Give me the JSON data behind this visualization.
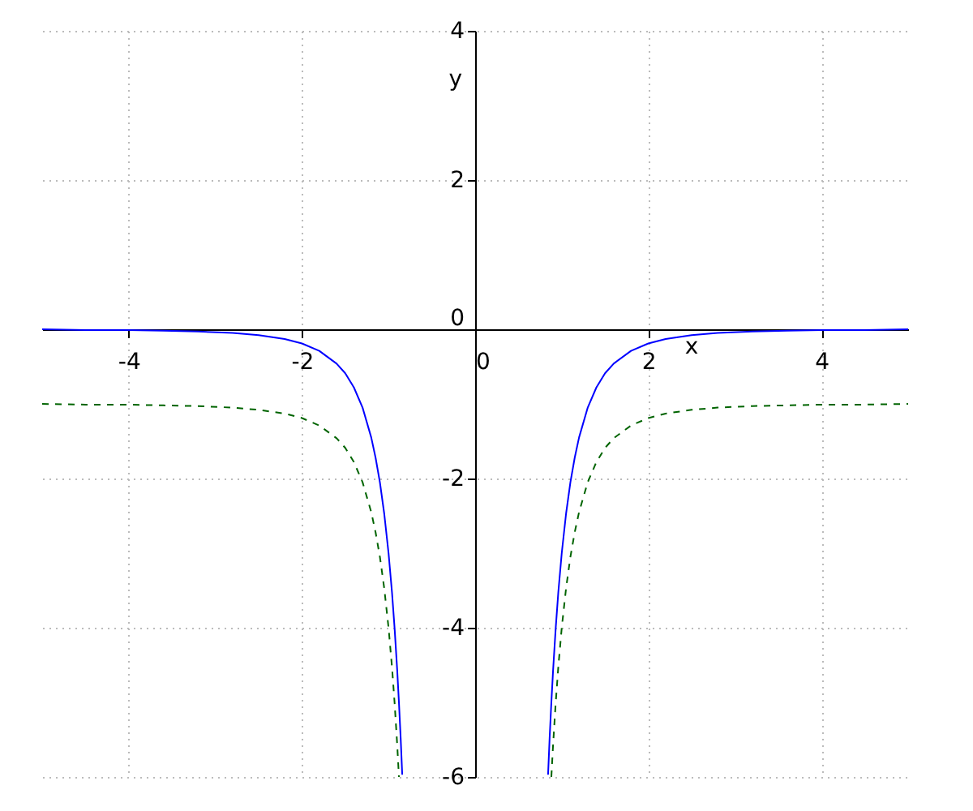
{
  "chart_data": {
    "type": "line",
    "xlabel": "x",
    "ylabel": "y",
    "xlim": [
      -5,
      5
    ],
    "ylim": [
      -6,
      4
    ],
    "xticks": [
      -4,
      -2,
      0,
      2,
      4
    ],
    "yticks": [
      -6,
      -4,
      -2,
      0,
      2,
      4
    ],
    "grid": true,
    "x": [
      -5.0,
      -4.5,
      -4.0,
      -3.6,
      -3.2,
      -2.8,
      -2.5,
      -2.2,
      -2.0,
      -1.8,
      -1.6,
      -1.5,
      -1.4,
      -1.3,
      -1.2,
      -1.15,
      -1.1,
      -1.05,
      -1.0,
      -0.96,
      -0.93,
      -0.9,
      -0.88,
      -0.86,
      -0.842,
      null,
      0.842,
      0.86,
      0.88,
      0.9,
      0.93,
      0.96,
      1.0,
      1.05,
      1.1,
      1.15,
      1.2,
      1.3,
      1.4,
      1.5,
      1.6,
      1.8,
      2.0,
      2.2,
      2.5,
      2.8,
      3.2,
      3.6,
      4.0,
      4.5,
      5.0
    ],
    "series": [
      {
        "color": "#0000ff",
        "line_style": "solid",
        "values": [
          0.0,
          -0.01,
          -0.01,
          -0.02,
          -0.03,
          -0.05,
          -0.08,
          -0.13,
          -0.19,
          -0.29,
          -0.46,
          -0.59,
          -0.78,
          -1.05,
          -1.45,
          -1.72,
          -2.05,
          -2.47,
          -3.0,
          -3.53,
          -4.01,
          -4.57,
          -5.0,
          -5.48,
          -5.97,
          null,
          -5.97,
          -5.48,
          -5.0,
          -4.57,
          -4.01,
          -3.53,
          -3.0,
          -2.47,
          -2.05,
          -1.72,
          -1.45,
          -1.05,
          -0.78,
          -0.59,
          -0.46,
          -0.29,
          -0.19,
          -0.13,
          -0.08,
          -0.05,
          -0.03,
          -0.02,
          -0.01,
          -0.01,
          0.0
        ]
      },
      {
        "color": "#006400",
        "line_style": "dashed",
        "values": [
          -1.0,
          -1.01,
          -1.01,
          -1.02,
          -1.03,
          -1.05,
          -1.08,
          -1.13,
          -1.19,
          -1.29,
          -1.46,
          -1.59,
          -1.78,
          -2.05,
          -2.45,
          -2.72,
          -3.05,
          -3.47,
          -4.0,
          -4.53,
          -5.01,
          -5.57,
          -6.0,
          null,
          null,
          null,
          null,
          null,
          -6.0,
          -5.57,
          -5.01,
          -4.53,
          -4.0,
          -3.47,
          -3.05,
          -2.72,
          -2.45,
          -2.05,
          -1.78,
          -1.59,
          -1.46,
          -1.29,
          -1.19,
          -1.13,
          -1.08,
          -1.05,
          -1.03,
          -1.02,
          -1.01,
          -1.01,
          -1.0
        ]
      }
    ]
  }
}
